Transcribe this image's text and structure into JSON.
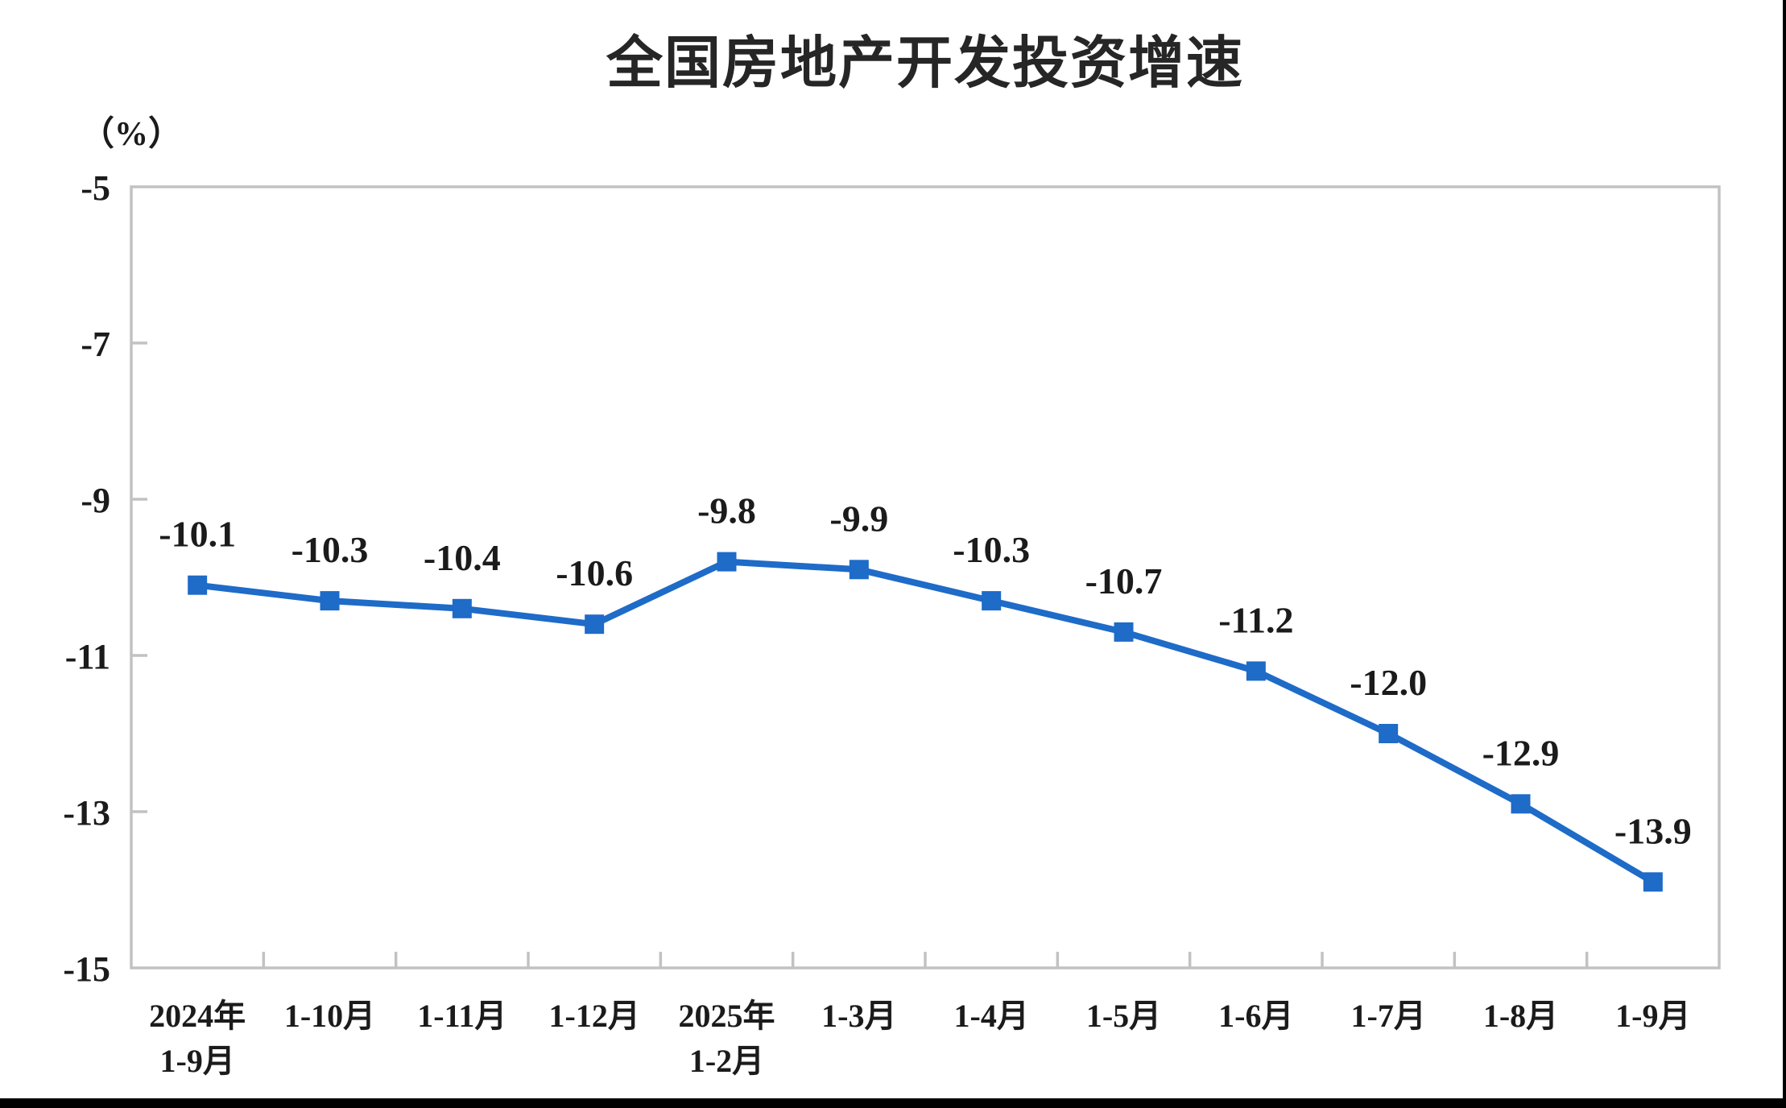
{
  "chart": {
    "title": "全国房地产开发投资增速",
    "unit_label": "（%）"
  },
  "chart_data": {
    "type": "line",
    "title": "全国房地产开发投资增速",
    "ylabel": "（%）",
    "categories": [
      [
        "2024年",
        "1-9月"
      ],
      [
        "1-10月"
      ],
      [
        "1-11月"
      ],
      [
        "1-12月"
      ],
      [
        "2025年",
        "1-2月"
      ],
      [
        "1-3月"
      ],
      [
        "1-4月"
      ],
      [
        "1-5月"
      ],
      [
        "1-6月"
      ],
      [
        "1-7月"
      ],
      [
        "1-8月"
      ],
      [
        "1-9月"
      ]
    ],
    "values": [
      -10.1,
      -10.3,
      -10.4,
      -10.6,
      -9.8,
      -9.9,
      -10.3,
      -10.7,
      -11.2,
      -12.0,
      -12.9,
      -13.9
    ],
    "data_labels": [
      "-10.1",
      "-10.3",
      "-10.4",
      "-10.6",
      "-9.8",
      "-9.9",
      "-10.3",
      "-10.7",
      "-11.2",
      "-12.0",
      "-12.9",
      "-13.9"
    ],
    "ylim": [
      -15,
      -5
    ],
    "yticks": [
      -5,
      -7,
      -9,
      -11,
      -13,
      -15
    ],
    "ytick_labels": [
      "-5",
      "-7",
      "-9",
      "-11",
      "-13",
      "-15"
    ],
    "grid": false,
    "legend": "none",
    "marker": "square",
    "line_color": "#1E6BC8",
    "marker_color": "#1E6BC8",
    "axis_color": "#C2C2C2",
    "text_color": "#1b1b1b"
  }
}
